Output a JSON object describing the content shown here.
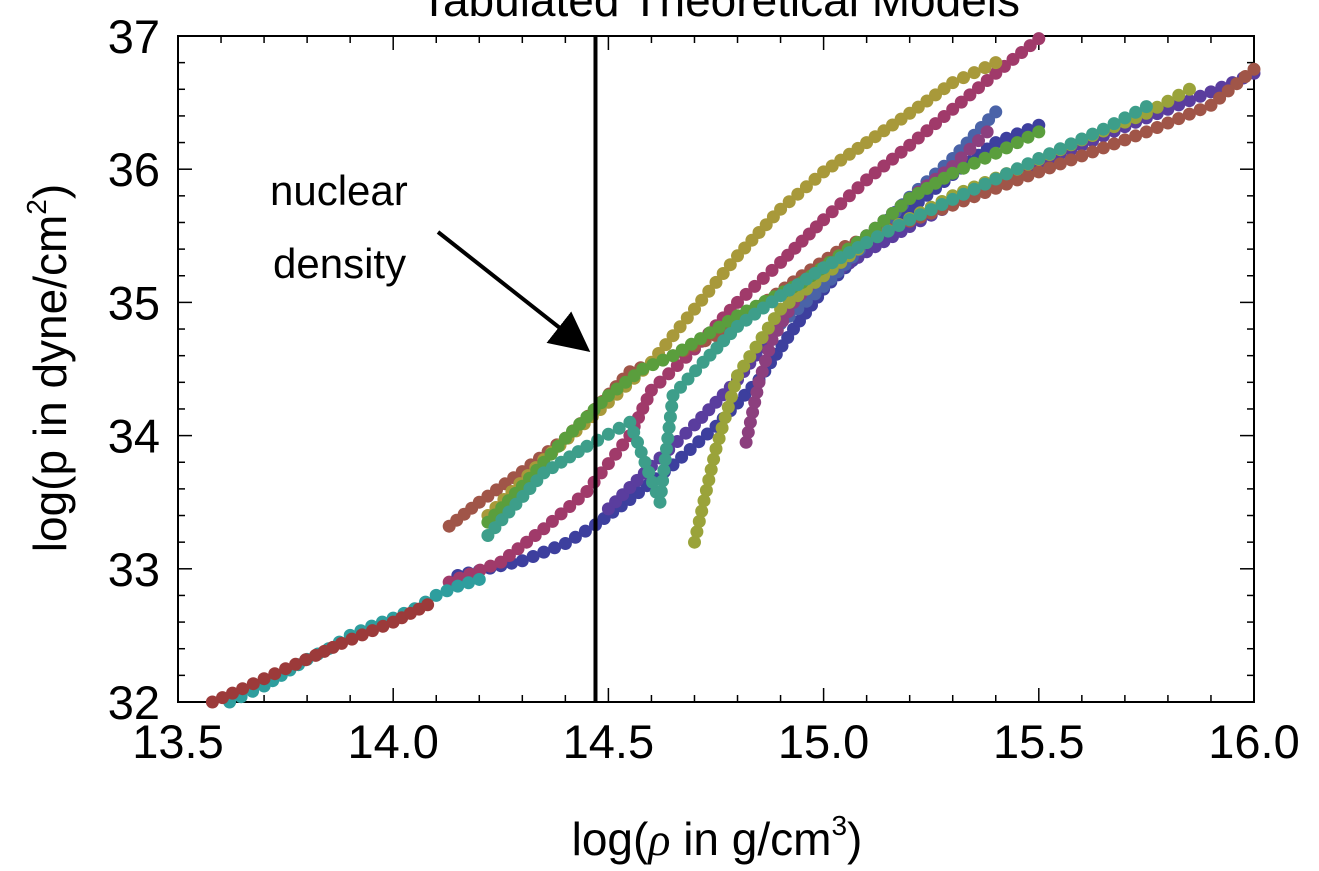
{
  "chart_data": {
    "type": "scatter",
    "title": "Tabulated Theoretical Models",
    "xlabel": "log(ρ in g/cm³)",
    "ylabel": "log(p in dyne/cm²)",
    "xlabel_main": "log(",
    "xlabel_rho": "ρ",
    "xlabel_rest": " in g/cm",
    "xlabel_sup": "3",
    "xlabel_close": ")",
    "ylabel_main": "log(p in dyne/cm",
    "ylabel_sup": "2",
    "ylabel_close": ")",
    "xlim": [
      13.5,
      16.0
    ],
    "ylim": [
      32,
      37
    ],
    "xticks": [
      "13.5",
      "14.0",
      "14.5",
      "15.0",
      "15.5",
      "16.0"
    ],
    "yticks": [
      "32",
      "33",
      "34",
      "35",
      "36",
      "37"
    ],
    "grid": false,
    "annotation": {
      "line1": "nuclear",
      "line2": "density",
      "x": 14.47
    },
    "series": [
      {
        "color": "#3d3f9e",
        "points": [
          [
            14.15,
            32.95
          ],
          [
            14.3,
            33.06
          ],
          [
            14.4,
            33.19
          ],
          [
            14.47,
            33.33
          ],
          [
            14.55,
            33.52
          ],
          [
            14.65,
            33.78
          ],
          [
            14.75,
            34.07
          ],
          [
            14.85,
            34.42
          ],
          [
            14.93,
            34.8
          ],
          [
            15.0,
            35.1
          ],
          [
            15.1,
            35.42
          ],
          [
            15.2,
            35.7
          ],
          [
            15.3,
            35.96
          ],
          [
            15.4,
            36.2
          ],
          [
            15.5,
            36.33
          ]
        ]
      },
      {
        "color": "#5a3d9e",
        "points": [
          [
            14.5,
            33.45
          ],
          [
            14.6,
            33.77
          ],
          [
            14.7,
            34.08
          ],
          [
            14.8,
            34.42
          ],
          [
            14.9,
            34.85
          ],
          [
            15.0,
            35.17
          ],
          [
            15.1,
            35.38
          ],
          [
            15.2,
            35.57
          ],
          [
            15.3,
            35.74
          ],
          [
            15.4,
            35.9
          ],
          [
            15.5,
            36.05
          ],
          [
            15.6,
            36.18
          ],
          [
            15.7,
            36.32
          ],
          [
            15.8,
            36.45
          ],
          [
            15.9,
            36.58
          ],
          [
            16.0,
            36.72
          ]
        ]
      },
      {
        "color": "#4a63a8",
        "points": [
          [
            14.9,
            34.84
          ],
          [
            15.0,
            35.12
          ],
          [
            15.1,
            35.45
          ],
          [
            15.2,
            35.79
          ],
          [
            15.3,
            36.08
          ],
          [
            15.4,
            36.43
          ]
        ]
      },
      {
        "color": "#8c3f7e",
        "points": [
          [
            14.82,
            33.95
          ],
          [
            14.85,
            34.4
          ],
          [
            14.88,
            34.72
          ],
          [
            14.93,
            35.0
          ],
          [
            15.0,
            35.25
          ],
          [
            15.1,
            35.5
          ],
          [
            15.2,
            35.78
          ],
          [
            15.3,
            36.02
          ],
          [
            15.38,
            36.28
          ]
        ]
      },
      {
        "color": "#a03a6a",
        "points": [
          [
            14.13,
            32.9
          ],
          [
            14.25,
            33.05
          ],
          [
            14.35,
            33.3
          ],
          [
            14.45,
            33.58
          ],
          [
            14.55,
            34.0
          ],
          [
            14.6,
            34.34
          ],
          [
            14.7,
            34.65
          ],
          [
            14.8,
            35.0
          ],
          [
            14.9,
            35.3
          ],
          [
            15.0,
            35.62
          ],
          [
            15.1,
            35.92
          ],
          [
            15.2,
            36.18
          ],
          [
            15.3,
            36.45
          ],
          [
            15.4,
            36.72
          ],
          [
            15.5,
            36.98
          ]
        ]
      },
      {
        "color": "#a05548",
        "points": [
          [
            14.13,
            33.32
          ],
          [
            14.2,
            33.5
          ],
          [
            14.3,
            33.73
          ],
          [
            14.4,
            33.98
          ],
          [
            14.47,
            34.2
          ],
          [
            14.55,
            34.48
          ],
          [
            14.65,
            34.6
          ],
          [
            14.75,
            34.75
          ],
          [
            14.85,
            34.97
          ],
          [
            14.95,
            35.2
          ],
          [
            15.05,
            35.42
          ],
          [
            15.15,
            35.55
          ],
          [
            15.3,
            35.73
          ],
          [
            15.45,
            35.92
          ],
          [
            15.6,
            36.1
          ],
          [
            15.75,
            36.28
          ],
          [
            15.9,
            36.48
          ],
          [
            16.0,
            36.75
          ]
        ]
      },
      {
        "color": "#a8993a",
        "points": [
          [
            14.22,
            33.4
          ],
          [
            14.35,
            33.82
          ],
          [
            14.5,
            34.25
          ],
          [
            14.6,
            34.55
          ],
          [
            14.7,
            34.95
          ],
          [
            14.8,
            35.35
          ],
          [
            14.9,
            35.7
          ],
          [
            15.0,
            35.98
          ],
          [
            15.1,
            36.2
          ],
          [
            15.2,
            36.42
          ],
          [
            15.3,
            36.65
          ],
          [
            15.4,
            36.8
          ]
        ]
      },
      {
        "color": "#9aa33a",
        "points": [
          [
            14.7,
            33.2
          ],
          [
            14.75,
            33.9
          ],
          [
            14.8,
            34.45
          ],
          [
            14.9,
            34.95
          ],
          [
            15.0,
            35.2
          ],
          [
            15.1,
            35.45
          ],
          [
            15.2,
            35.63
          ],
          [
            15.3,
            35.8
          ],
          [
            15.45,
            36.0
          ],
          [
            15.6,
            36.22
          ],
          [
            15.75,
            36.42
          ],
          [
            15.85,
            36.6
          ]
        ]
      },
      {
        "color": "#5a9e3d",
        "points": [
          [
            14.22,
            33.35
          ],
          [
            14.3,
            33.62
          ],
          [
            14.4,
            33.98
          ],
          [
            14.5,
            34.3
          ],
          [
            14.58,
            34.5
          ],
          [
            14.65,
            34.6
          ],
          [
            14.8,
            34.9
          ],
          [
            14.95,
            35.15
          ],
          [
            15.1,
            35.5
          ],
          [
            15.2,
            35.78
          ],
          [
            15.3,
            35.97
          ],
          [
            15.4,
            36.12
          ],
          [
            15.5,
            36.28
          ]
        ]
      },
      {
        "color": "#3d9e8a",
        "points": [
          [
            14.22,
            33.25
          ],
          [
            14.35,
            33.72
          ],
          [
            14.45,
            33.92
          ],
          [
            14.55,
            34.1
          ],
          [
            14.62,
            33.5
          ],
          [
            14.65,
            34.3
          ],
          [
            14.72,
            34.55
          ],
          [
            14.8,
            34.82
          ],
          [
            14.9,
            35.05
          ],
          [
            15.0,
            35.26
          ],
          [
            15.1,
            35.45
          ],
          [
            15.2,
            35.62
          ],
          [
            15.35,
            35.85
          ],
          [
            15.5,
            36.08
          ],
          [
            15.65,
            36.3
          ],
          [
            15.75,
            36.47
          ]
        ]
      },
      {
        "color": "#2e9e9e",
        "points": [
          [
            13.62,
            32.0
          ],
          [
            13.7,
            32.12
          ],
          [
            13.8,
            32.32
          ],
          [
            13.85,
            32.4
          ],
          [
            13.9,
            32.5
          ],
          [
            13.95,
            32.57
          ],
          [
            14.0,
            32.63
          ],
          [
            14.05,
            32.7
          ],
          [
            14.1,
            32.8
          ],
          [
            14.15,
            32.87
          ],
          [
            14.2,
            32.92
          ]
        ]
      },
      {
        "color": "#9c3a3a",
        "points": [
          [
            13.58,
            32.0
          ],
          [
            13.65,
            32.1
          ],
          [
            13.75,
            32.25
          ],
          [
            13.82,
            32.35
          ],
          [
            13.88,
            32.44
          ],
          [
            14.0,
            32.6
          ],
          [
            14.08,
            32.73
          ]
        ]
      }
    ]
  }
}
